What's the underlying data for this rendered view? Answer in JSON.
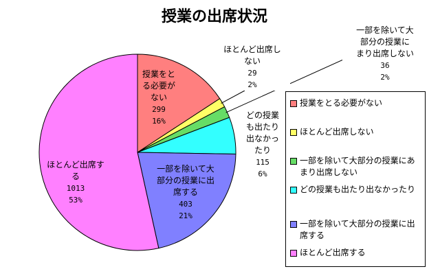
{
  "chart_data": {
    "type": "pie",
    "title": "授業の出席状況",
    "slices": [
      {
        "label": "授業をとる必要がない",
        "value": 299,
        "percent": "16%",
        "color": "#ff7f7f",
        "label_lines": [
          "授業をと",
          "る必要が",
          "ない"
        ]
      },
      {
        "label": "ほとんど出席しない",
        "value": 29,
        "percent": "2%",
        "color": "#ffff66",
        "label_lines": [
          "ほとんど出席し",
          "ない"
        ]
      },
      {
        "label": "一部を除いて大部分の授業にあまり出席しない",
        "value": 36,
        "percent": "2%",
        "color": "#66dd66",
        "label_lines": [
          "一部を除いて大",
          "部分の授業に",
          "まり出席しない"
        ]
      },
      {
        "label": "どの授業も出たり出なかったり",
        "value": 115,
        "percent": "6%",
        "color": "#33ffff",
        "label_lines": [
          "どの授業",
          "も出たり",
          "出なかっ",
          "たり"
        ]
      },
      {
        "label": "一部を除いて大部分の授業に出席する",
        "value": 403,
        "percent": "21%",
        "color": "#8080ff",
        "label_lines": [
          "一部を除いて大",
          "部分の授業に出",
          "席する"
        ]
      },
      {
        "label": "ほとんど出席する",
        "value": 1013,
        "percent": "53%",
        "color": "#ff80ff",
        "label_lines": [
          "ほとんど出席す",
          "る"
        ]
      }
    ],
    "legend_position": "right"
  }
}
